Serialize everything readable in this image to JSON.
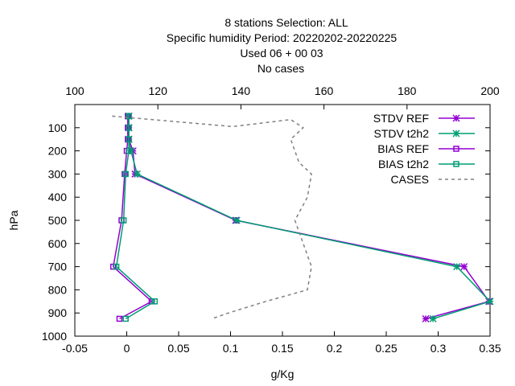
{
  "chart_data": {
    "type": "line",
    "title_lines": [
      "8 stations Selection: ALL",
      "Specific humidity  Period: 20220202-20220225",
      "Used  06  + 00 03",
      "No cases"
    ],
    "xlabel": "g/Kg",
    "ylabel": "hPa",
    "xlim": [
      -0.05,
      0.35
    ],
    "x_ticks": [
      "-0.05",
      "0",
      "0.05",
      "0.1",
      "0.15",
      "0.2",
      "0.25",
      "0.3",
      "0.35"
    ],
    "x_tick_values": [
      -0.05,
      0,
      0.05,
      0.1,
      0.15,
      0.2,
      0.25,
      0.3,
      0.35
    ],
    "x2lim": [
      100,
      200
    ],
    "x2_ticks": [
      "100",
      "120",
      "140",
      "160",
      "180",
      "200"
    ],
    "x2_tick_values": [
      100,
      120,
      140,
      160,
      180,
      200
    ],
    "ylim": [
      1000,
      0
    ],
    "y_ticks": [
      "100",
      "200",
      "300",
      "400",
      "500",
      "600",
      "700",
      "800",
      "900",
      "1000"
    ],
    "y_tick_values": [
      100,
      200,
      300,
      400,
      500,
      600,
      700,
      800,
      900,
      1000
    ],
    "legend_position": "top-right",
    "series": [
      {
        "name": "STDV REF",
        "color": "#9400d3",
        "marker": "x-star",
        "axis": "x1",
        "points": [
          [
            0.002,
            50
          ],
          [
            0.002,
            100
          ],
          [
            0.002,
            150
          ],
          [
            0.006,
            200
          ],
          [
            0.008,
            300
          ],
          [
            0.105,
            500
          ],
          [
            0.325,
            700
          ],
          [
            0.349,
            850
          ],
          [
            0.288,
            925
          ]
        ]
      },
      {
        "name": "STDV t2h2",
        "color": "#009e73",
        "marker": "x-star",
        "axis": "x1",
        "points": [
          [
            0.002,
            50
          ],
          [
            0.002,
            100
          ],
          [
            0.002,
            150
          ],
          [
            0.004,
            200
          ],
          [
            0.01,
            300
          ],
          [
            0.106,
            500
          ],
          [
            0.318,
            700
          ],
          [
            0.35,
            850
          ],
          [
            0.295,
            925
          ]
        ]
      },
      {
        "name": "BIAS REF",
        "color": "#9400d3",
        "marker": "square",
        "axis": "x1",
        "points": [
          [
            0.001,
            50
          ],
          [
            0.001,
            100
          ],
          [
            0.001,
            150
          ],
          [
            0.0,
            200
          ],
          [
            -0.002,
            300
          ],
          [
            -0.005,
            500
          ],
          [
            -0.013,
            700
          ],
          [
            0.024,
            850
          ],
          [
            -0.007,
            925
          ]
        ]
      },
      {
        "name": "BIAS t2h2",
        "color": "#009e73",
        "marker": "square",
        "axis": "x1",
        "points": [
          [
            0.002,
            50
          ],
          [
            0.002,
            100
          ],
          [
            0.002,
            150
          ],
          [
            0.002,
            200
          ],
          [
            -0.001,
            300
          ],
          [
            -0.003,
            500
          ],
          [
            -0.01,
            700
          ],
          [
            0.027,
            850
          ],
          [
            -0.001,
            925
          ]
        ]
      },
      {
        "name": "CASES",
        "color": "#808080",
        "dashed": true,
        "axis": "x2",
        "points": [
          [
            109,
            50
          ],
          [
            138,
            95
          ],
          [
            152,
            65
          ],
          [
            155,
            100
          ],
          [
            152,
            150
          ],
          [
            154,
            250
          ],
          [
            157,
            300
          ],
          [
            156,
            400
          ],
          [
            153,
            500
          ],
          [
            155,
            600
          ],
          [
            157,
            700
          ],
          [
            156,
            800
          ],
          [
            146,
            850
          ],
          [
            137,
            900
          ],
          [
            133,
            925
          ]
        ]
      }
    ]
  }
}
